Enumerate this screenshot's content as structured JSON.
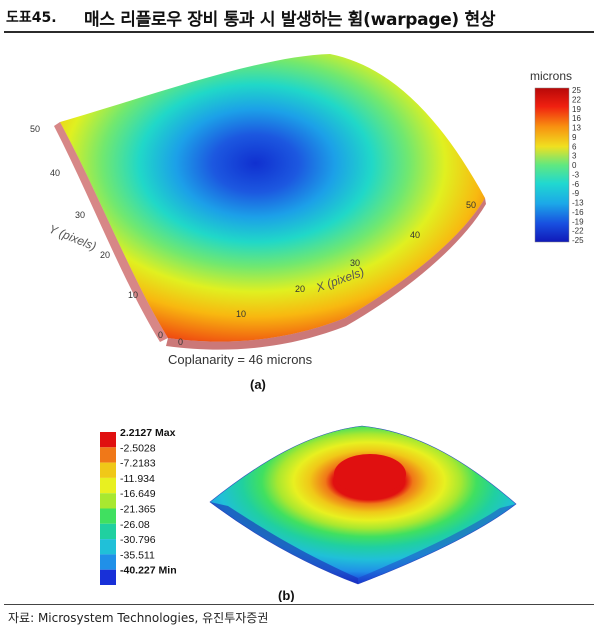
{
  "header": {
    "figure_label": "도표45.",
    "title": "매스 리플로우 장비 통과 시 발생하는 휨(warpage) 현상"
  },
  "panel_a": {
    "legend_title": "microns",
    "legend_ticks": [
      "25",
      "22",
      "19",
      "16",
      "13",
      "9",
      "6",
      "3",
      "0",
      "-3",
      "-6",
      "-9",
      "-13",
      "-16",
      "-19",
      "-22",
      "-25"
    ],
    "y_axis_title": "Y (pixels)",
    "x_axis_title": "X (pixels)",
    "y_ticks": [
      "50",
      "40",
      "30",
      "20",
      "10",
      "0"
    ],
    "x_ticks": [
      "0",
      "10",
      "20",
      "30",
      "40",
      "50"
    ],
    "caption": "Coplanarity = 46 microns",
    "label": "(a)"
  },
  "panel_b": {
    "legend": [
      "2.2127 Max",
      "-2.5028",
      "-7.2183",
      "-11.934",
      "-16.649",
      "-21.365",
      "-26.08",
      "-30.796",
      "-35.511",
      "-40.227 Min"
    ],
    "legend_colors": [
      "#e01010",
      "#f07818",
      "#f0c818",
      "#e8f020",
      "#a8e830",
      "#40e060",
      "#20d0a0",
      "#20c0d8",
      "#2090e8",
      "#1830d8"
    ],
    "label": "(b)"
  },
  "source": "자료: Microsystem Technologies, 유진투자증권"
}
